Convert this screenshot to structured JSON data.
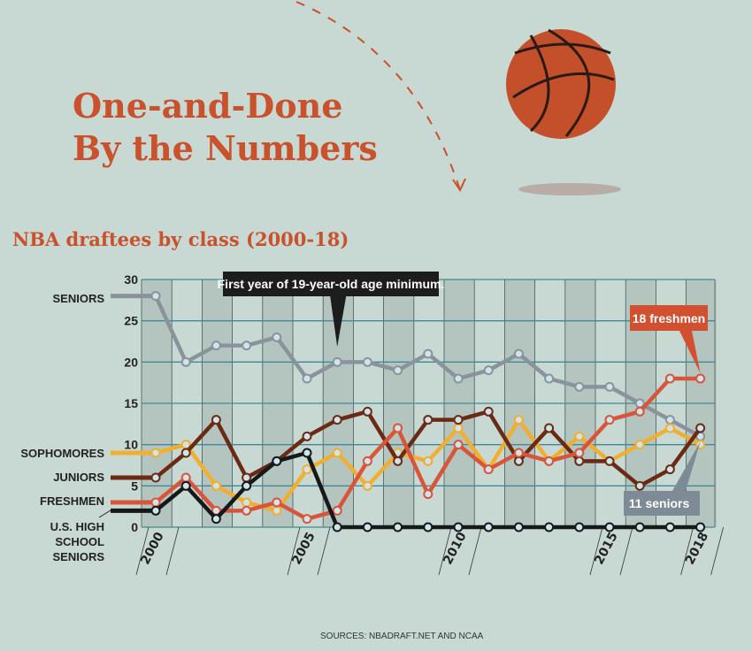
{
  "title_line1": "One-and-Done",
  "title_line2": "By the Numbers",
  "subtitle": "NBA draftees by class (2000-18)",
  "source": "SOURCES: NBADRAFT.NET AND NCAA",
  "chart_data": {
    "type": "line",
    "title": "NBA draftees by class (2000-18)",
    "x": [
      2000,
      2001,
      2002,
      2003,
      2004,
      2005,
      2006,
      2007,
      2008,
      2009,
      2010,
      2011,
      2012,
      2013,
      2014,
      2015,
      2016,
      2017,
      2018
    ],
    "x_tick_labels": [
      {
        "year": 2000,
        "label": "2000"
      },
      {
        "year": 2005,
        "label": "2005"
      },
      {
        "year": 2010,
        "label": "2010"
      },
      {
        "year": 2015,
        "label": "2015"
      },
      {
        "year": 2018,
        "label": "2018"
      }
    ],
    "yticks": [
      0,
      5,
      10,
      15,
      20,
      25,
      30
    ],
    "ylim": [
      0,
      30
    ],
    "grid": true,
    "series": [
      {
        "name": "SENIORS",
        "color": "#8a939c",
        "values": [
          28,
          20,
          22,
          22,
          23,
          18,
          20,
          20,
          19,
          21,
          18,
          19,
          21,
          18,
          17,
          17,
          15,
          13,
          11
        ]
      },
      {
        "name": "SOPHOMORES",
        "color": "#f2ae2e",
        "values": [
          9,
          10,
          5,
          3,
          2,
          7,
          9,
          5,
          9,
          8,
          12,
          7,
          13,
          8,
          11,
          8,
          10,
          12,
          10
        ]
      },
      {
        "name": "JUNIORS",
        "color": "#6b2a14",
        "values": [
          6,
          9,
          13,
          6,
          8,
          11,
          13,
          14,
          8,
          13,
          13,
          14,
          8,
          12,
          8,
          8,
          5,
          7,
          12
        ]
      },
      {
        "name": "FRESHMEN",
        "color": "#d9553a",
        "values": [
          3,
          6,
          2,
          2,
          3,
          1,
          2,
          8,
          12,
          4,
          10,
          7,
          9,
          8,
          9,
          13,
          14,
          18,
          18
        ]
      },
      {
        "name": "U.S. HIGH SCHOOL SENIORS",
        "color": "#15191a",
        "values": [
          2,
          5,
          1,
          5,
          8,
          9,
          0,
          0,
          0,
          0,
          0,
          0,
          0,
          0,
          0,
          0,
          0,
          0,
          0
        ]
      }
    ],
    "annotations": [
      {
        "text": "First year of 19-year-old age minimum.",
        "year": 2006
      },
      {
        "text": "18 freshmen",
        "year": 2018,
        "value": 18
      },
      {
        "text": "11 seniors",
        "year": 2018,
        "value": 11
      }
    ]
  }
}
